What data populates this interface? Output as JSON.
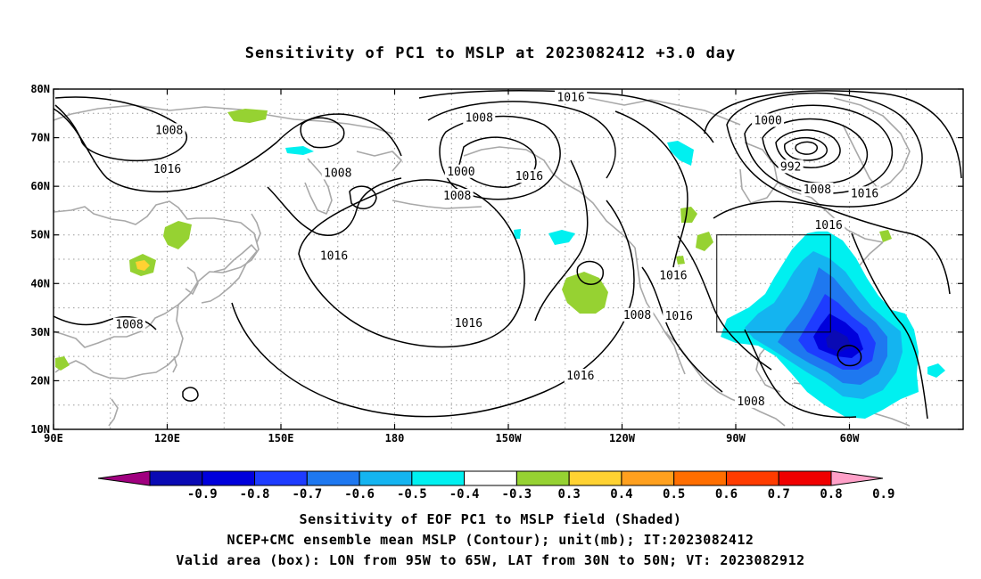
{
  "title": "Sensitivity of PC1 to MSLP at 2023082412 +3.0 day",
  "captions": [
    "Sensitivity of EOF PC1 to MSLP field (Shaded)",
    "NCEP+CMC ensemble mean MSLP (Contour); unit(mb); IT:2023082412",
    "Valid area (box): LON from 95W to 65W, LAT from 30N to 50N; VT: 2023082912"
  ],
  "map": {
    "lon_range": [
      90,
      330
    ],
    "lat_range": [
      10,
      80
    ],
    "lon_ticks": [
      {
        "lon": 90,
        "label": "90E"
      },
      {
        "lon": 120,
        "label": "120E"
      },
      {
        "lon": 150,
        "label": "150E"
      },
      {
        "lon": 180,
        "label": "180"
      },
      {
        "lon": 210,
        "label": "150W"
      },
      {
        "lon": 240,
        "label": "120W"
      },
      {
        "lon": 270,
        "label": "90W"
      },
      {
        "lon": 300,
        "label": "60W"
      }
    ],
    "lat_ticks": [
      {
        "lat": 10,
        "label": "10N"
      },
      {
        "lat": 20,
        "label": "20N"
      },
      {
        "lat": 30,
        "label": "30N"
      },
      {
        "lat": 40,
        "label": "40N"
      },
      {
        "lat": 50,
        "label": "50N"
      },
      {
        "lat": 60,
        "label": "60N"
      },
      {
        "lat": 70,
        "label": "70N"
      },
      {
        "lat": 80,
        "label": "80N"
      }
    ],
    "valid_box": {
      "lon_min": 265,
      "lon_max": 295,
      "lat_min": 30,
      "lat_max": 50
    },
    "contour_labels": [
      {
        "text": "1008",
        "lon": 120.5,
        "lat": 71.5
      },
      {
        "text": "1016",
        "lon": 120,
        "lat": 63.5
      },
      {
        "text": "1008",
        "lon": 165,
        "lat": 62.7
      },
      {
        "text": "1008",
        "lon": 202.3,
        "lat": 74
      },
      {
        "text": "1016",
        "lon": 226.5,
        "lat": 78.3
      },
      {
        "text": "1000",
        "lon": 197.5,
        "lat": 63
      },
      {
        "text": "1008",
        "lon": 196.5,
        "lat": 58
      },
      {
        "text": "1016",
        "lon": 215.5,
        "lat": 62
      },
      {
        "text": "1016",
        "lon": 164,
        "lat": 45.6
      },
      {
        "text": "1016",
        "lon": 199.5,
        "lat": 31.8
      },
      {
        "text": "1016",
        "lon": 229,
        "lat": 21
      },
      {
        "text": "1008",
        "lon": 110,
        "lat": 31.5
      },
      {
        "text": "1008",
        "lon": 244,
        "lat": 33.5
      },
      {
        "text": "1016",
        "lon": 255,
        "lat": 33.3
      },
      {
        "text": "1016",
        "lon": 253.5,
        "lat": 41.6
      },
      {
        "text": "1000",
        "lon": 278.5,
        "lat": 73.5
      },
      {
        "text": "992",
        "lon": 284.5,
        "lat": 64
      },
      {
        "text": "1008",
        "lon": 291.5,
        "lat": 59.3
      },
      {
        "text": "1016",
        "lon": 304,
        "lat": 58.5
      },
      {
        "text": "1016",
        "lon": 294.5,
        "lat": 52
      },
      {
        "text": "1008",
        "lon": 274,
        "lat": 15.7
      }
    ],
    "legend_colors": [
      "#a0007f",
      "#0a0ab4",
      "#0000dc",
      "#1e3cff",
      "#1e78f0",
      "#14b4f0",
      "#00f0f0",
      "#ffffff",
      "#96d232",
      "#ffd232",
      "#ffa01e",
      "#ff6e00",
      "#ff3c00",
      "#f00000",
      "#ffa0c8"
    ],
    "legend_labels": [
      "-0.9",
      "-0.8",
      "-0.7",
      "-0.6",
      "-0.5",
      "-0.4",
      "-0.3",
      "0.3",
      "0.4",
      "0.5",
      "0.6",
      "0.7",
      "0.8",
      "0.9"
    ]
  }
}
